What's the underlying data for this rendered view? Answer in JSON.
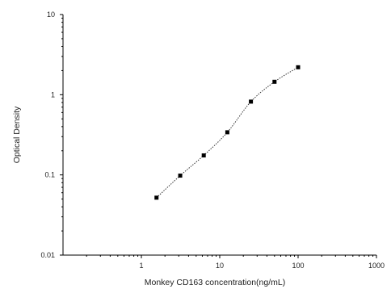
{
  "chart_data": {
    "type": "scatter",
    "xlabel": "Monkey CD163 concentration(ng/mL)",
    "ylabel": "Optical Density",
    "xscale": "log",
    "yscale": "log",
    "xlim": [
      0.1,
      1000
    ],
    "ylim": [
      0.01,
      10
    ],
    "x_ticks": [
      1,
      10,
      100,
      1000
    ],
    "x_tick_labels": [
      "1",
      "10",
      "100",
      "1000"
    ],
    "y_ticks": [
      0.01,
      0.1,
      1,
      10
    ],
    "y_tick_labels": [
      "0.01",
      "0.1",
      "1",
      "10"
    ],
    "grid": false,
    "legend": "none",
    "fit_line": "dotted",
    "series": [
      {
        "x": [
          1.56,
          3.13,
          6.25,
          12.5,
          25,
          50,
          100
        ],
        "y": [
          0.052,
          0.098,
          0.175,
          0.34,
          0.82,
          1.45,
          2.2
        ]
      }
    ]
  }
}
